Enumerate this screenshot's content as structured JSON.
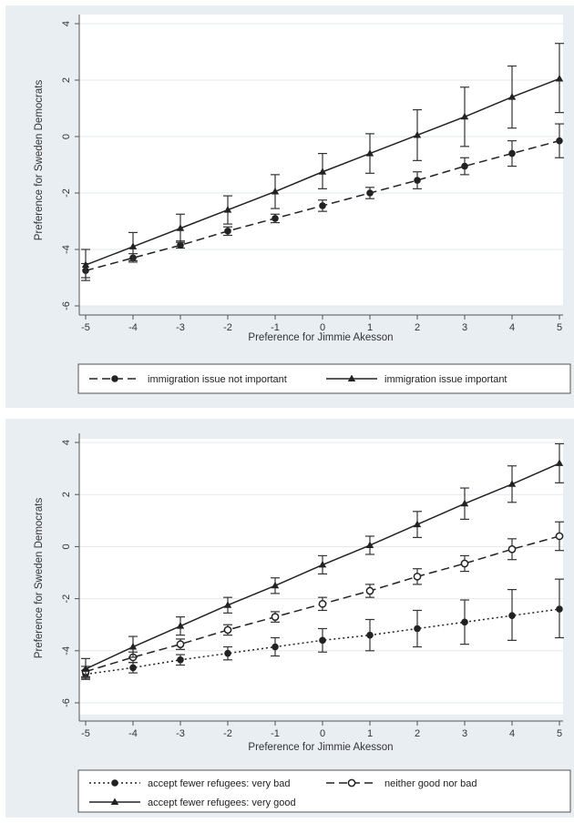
{
  "chart_data": [
    {
      "type": "line",
      "xlabel": "Preference for Jimmie Akesson",
      "ylabel": "Preference for Sweden Democrats",
      "xlim": [
        -5,
        5
      ],
      "ylim": [
        -6,
        4
      ],
      "x": [
        -5,
        -4,
        -3,
        -2,
        -1,
        0,
        1,
        2,
        3,
        4,
        5
      ],
      "xticks": [
        "-5",
        "-4",
        "-3",
        "-2",
        "-1",
        "0",
        "1",
        "2",
        "3",
        "4",
        "5"
      ],
      "yticks": [
        "-6",
        "-4",
        "-2",
        "0",
        "2",
        "4"
      ],
      "grid": true,
      "legend_position": "bottom",
      "series": [
        {
          "name": "immigration issue not important",
          "style": "dash",
          "marker": "circle",
          "values": [
            -4.75,
            -4.3,
            -3.85,
            -3.35,
            -2.9,
            -2.45,
            -2.0,
            -1.55,
            -1.05,
            -0.6,
            -0.15
          ],
          "ci_low": [
            -5.0,
            -4.45,
            -3.95,
            -3.5,
            -3.05,
            -2.65,
            -2.2,
            -1.85,
            -1.35,
            -1.05,
            -0.75
          ],
          "ci_high": [
            -4.5,
            -4.15,
            -3.7,
            -3.2,
            -2.75,
            -2.25,
            -1.8,
            -1.25,
            -0.75,
            -0.15,
            0.45
          ]
        },
        {
          "name": "immigration issue important",
          "style": "solid",
          "marker": "triangle",
          "values": [
            -4.55,
            -3.9,
            -3.25,
            -2.6,
            -1.95,
            -1.25,
            -0.6,
            0.05,
            0.7,
            1.4,
            2.05
          ],
          "ci_low": [
            -5.1,
            -4.4,
            -3.75,
            -3.1,
            -2.55,
            -1.85,
            -1.3,
            -0.85,
            -0.35,
            0.3,
            0.85
          ],
          "ci_high": [
            -4.0,
            -3.4,
            -2.75,
            -2.1,
            -1.35,
            -0.6,
            0.1,
            0.95,
            1.75,
            2.5,
            3.3
          ]
        }
      ]
    },
    {
      "type": "line",
      "xlabel": "Preference for Jimmie Akesson",
      "ylabel": "Preference for Sweden Democrats",
      "xlim": [
        -5,
        5
      ],
      "ylim": [
        -6,
        4
      ],
      "x": [
        -5,
        -4,
        -3,
        -2,
        -1,
        0,
        1,
        2,
        3,
        4,
        5
      ],
      "xticks": [
        "-5",
        "-4",
        "-3",
        "-2",
        "-1",
        "0",
        "1",
        "2",
        "3",
        "4",
        "5"
      ],
      "yticks": [
        "-6",
        "-4",
        "-2",
        "0",
        "2",
        "4"
      ],
      "grid": true,
      "legend_position": "bottom",
      "series": [
        {
          "name": "accept fewer refugees: very bad",
          "style": "dot",
          "marker": "circle",
          "values": [
            -4.9,
            -4.65,
            -4.35,
            -4.1,
            -3.85,
            -3.6,
            -3.4,
            -3.15,
            -2.9,
            -2.65,
            -2.4
          ],
          "ci_low": [
            -5.05,
            -4.85,
            -4.55,
            -4.35,
            -4.2,
            -4.05,
            -4.0,
            -3.85,
            -3.75,
            -3.6,
            -3.5
          ],
          "ci_high": [
            -4.75,
            -4.45,
            -4.15,
            -3.85,
            -3.5,
            -3.15,
            -2.8,
            -2.45,
            -2.05,
            -1.65,
            -1.25
          ]
        },
        {
          "name": "neither good nor bad",
          "style": "dash",
          "marker": "circle-open",
          "values": [
            -4.8,
            -4.25,
            -3.75,
            -3.2,
            -2.7,
            -2.2,
            -1.7,
            -1.15,
            -0.65,
            -0.1,
            0.4
          ],
          "ci_low": [
            -5.0,
            -4.45,
            -3.95,
            -3.4,
            -2.9,
            -2.45,
            -1.95,
            -1.45,
            -0.95,
            -0.5,
            -0.15
          ],
          "ci_high": [
            -4.6,
            -4.05,
            -3.55,
            -3.0,
            -2.5,
            -1.95,
            -1.45,
            -0.85,
            -0.35,
            0.3,
            0.95
          ]
        },
        {
          "name": "accept fewer refugees: very good",
          "style": "solid",
          "marker": "triangle",
          "values": [
            -4.7,
            -3.85,
            -3.05,
            -2.25,
            -1.5,
            -0.7,
            0.05,
            0.85,
            1.65,
            2.4,
            3.2
          ],
          "ci_low": [
            -5.1,
            -4.25,
            -3.4,
            -2.55,
            -1.8,
            -1.05,
            -0.3,
            0.35,
            1.05,
            1.7,
            2.45
          ],
          "ci_high": [
            -4.3,
            -3.45,
            -2.7,
            -1.95,
            -1.2,
            -0.35,
            0.4,
            1.35,
            2.25,
            3.1,
            3.95
          ]
        }
      ]
    }
  ]
}
